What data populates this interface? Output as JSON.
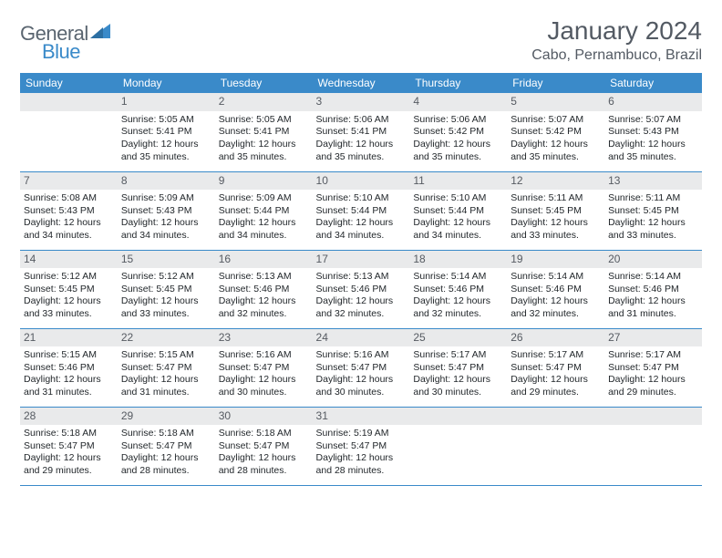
{
  "brand": {
    "name_part1": "General",
    "name_part2": "Blue"
  },
  "title": "January 2024",
  "location": "Cabo, Pernambuco, Brazil",
  "colors": {
    "header_bg": "#3a8ac9",
    "header_text": "#ffffff",
    "daynum_bg": "#e9eaeb",
    "daynum_text": "#565b62",
    "body_text": "#22272b",
    "title_text": "#535a63",
    "rule": "#3a8ac9",
    "logo_gray": "#5a6570",
    "logo_blue": "#3a8ac9",
    "page_bg": "#ffffff"
  },
  "typography": {
    "title_fontsize": 28,
    "location_fontsize": 16,
    "header_fontsize": 12,
    "daynum_fontsize": 12,
    "cell_fontsize": 10.5
  },
  "weekday_labels": [
    "Sunday",
    "Monday",
    "Tuesday",
    "Wednesday",
    "Thursday",
    "Friday",
    "Saturday"
  ],
  "label_sunrise": "Sunrise:",
  "label_sunset": "Sunset:",
  "label_daylight_prefix": "Daylight:",
  "weeks": [
    [
      {
        "day": "",
        "empty": true
      },
      {
        "day": "1",
        "sunrise": "5:05 AM",
        "sunset": "5:41 PM",
        "daylight": "12 hours and 35 minutes."
      },
      {
        "day": "2",
        "sunrise": "5:05 AM",
        "sunset": "5:41 PM",
        "daylight": "12 hours and 35 minutes."
      },
      {
        "day": "3",
        "sunrise": "5:06 AM",
        "sunset": "5:41 PM",
        "daylight": "12 hours and 35 minutes."
      },
      {
        "day": "4",
        "sunrise": "5:06 AM",
        "sunset": "5:42 PM",
        "daylight": "12 hours and 35 minutes."
      },
      {
        "day": "5",
        "sunrise": "5:07 AM",
        "sunset": "5:42 PM",
        "daylight": "12 hours and 35 minutes."
      },
      {
        "day": "6",
        "sunrise": "5:07 AM",
        "sunset": "5:43 PM",
        "daylight": "12 hours and 35 minutes."
      }
    ],
    [
      {
        "day": "7",
        "sunrise": "5:08 AM",
        "sunset": "5:43 PM",
        "daylight": "12 hours and 34 minutes."
      },
      {
        "day": "8",
        "sunrise": "5:09 AM",
        "sunset": "5:43 PM",
        "daylight": "12 hours and 34 minutes."
      },
      {
        "day": "9",
        "sunrise": "5:09 AM",
        "sunset": "5:44 PM",
        "daylight": "12 hours and 34 minutes."
      },
      {
        "day": "10",
        "sunrise": "5:10 AM",
        "sunset": "5:44 PM",
        "daylight": "12 hours and 34 minutes."
      },
      {
        "day": "11",
        "sunrise": "5:10 AM",
        "sunset": "5:44 PM",
        "daylight": "12 hours and 34 minutes."
      },
      {
        "day": "12",
        "sunrise": "5:11 AM",
        "sunset": "5:45 PM",
        "daylight": "12 hours and 33 minutes."
      },
      {
        "day": "13",
        "sunrise": "5:11 AM",
        "sunset": "5:45 PM",
        "daylight": "12 hours and 33 minutes."
      }
    ],
    [
      {
        "day": "14",
        "sunrise": "5:12 AM",
        "sunset": "5:45 PM",
        "daylight": "12 hours and 33 minutes."
      },
      {
        "day": "15",
        "sunrise": "5:12 AM",
        "sunset": "5:45 PM",
        "daylight": "12 hours and 33 minutes."
      },
      {
        "day": "16",
        "sunrise": "5:13 AM",
        "sunset": "5:46 PM",
        "daylight": "12 hours and 32 minutes."
      },
      {
        "day": "17",
        "sunrise": "5:13 AM",
        "sunset": "5:46 PM",
        "daylight": "12 hours and 32 minutes."
      },
      {
        "day": "18",
        "sunrise": "5:14 AM",
        "sunset": "5:46 PM",
        "daylight": "12 hours and 32 minutes."
      },
      {
        "day": "19",
        "sunrise": "5:14 AM",
        "sunset": "5:46 PM",
        "daylight": "12 hours and 32 minutes."
      },
      {
        "day": "20",
        "sunrise": "5:14 AM",
        "sunset": "5:46 PM",
        "daylight": "12 hours and 31 minutes."
      }
    ],
    [
      {
        "day": "21",
        "sunrise": "5:15 AM",
        "sunset": "5:46 PM",
        "daylight": "12 hours and 31 minutes."
      },
      {
        "day": "22",
        "sunrise": "5:15 AM",
        "sunset": "5:47 PM",
        "daylight": "12 hours and 31 minutes."
      },
      {
        "day": "23",
        "sunrise": "5:16 AM",
        "sunset": "5:47 PM",
        "daylight": "12 hours and 30 minutes."
      },
      {
        "day": "24",
        "sunrise": "5:16 AM",
        "sunset": "5:47 PM",
        "daylight": "12 hours and 30 minutes."
      },
      {
        "day": "25",
        "sunrise": "5:17 AM",
        "sunset": "5:47 PM",
        "daylight": "12 hours and 30 minutes."
      },
      {
        "day": "26",
        "sunrise": "5:17 AM",
        "sunset": "5:47 PM",
        "daylight": "12 hours and 29 minutes."
      },
      {
        "day": "27",
        "sunrise": "5:17 AM",
        "sunset": "5:47 PM",
        "daylight": "12 hours and 29 minutes."
      }
    ],
    [
      {
        "day": "28",
        "sunrise": "5:18 AM",
        "sunset": "5:47 PM",
        "daylight": "12 hours and 29 minutes."
      },
      {
        "day": "29",
        "sunrise": "5:18 AM",
        "sunset": "5:47 PM",
        "daylight": "12 hours and 28 minutes."
      },
      {
        "day": "30",
        "sunrise": "5:18 AM",
        "sunset": "5:47 PM",
        "daylight": "12 hours and 28 minutes."
      },
      {
        "day": "31",
        "sunrise": "5:19 AM",
        "sunset": "5:47 PM",
        "daylight": "12 hours and 28 minutes."
      },
      {
        "day": "",
        "empty": true
      },
      {
        "day": "",
        "empty": true
      },
      {
        "day": "",
        "empty": true
      }
    ]
  ]
}
